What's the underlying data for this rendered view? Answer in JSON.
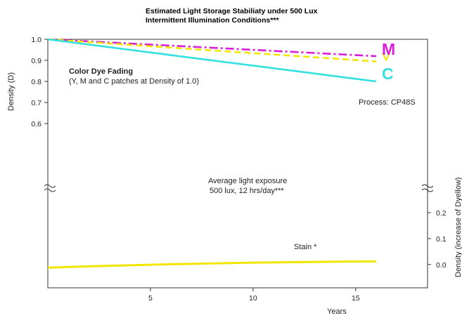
{
  "chart_data": {
    "type": "line",
    "title": [
      "Estimated Light Storage Stabiliaty under 500 Lux",
      "Intermittent Illumination Conditions***"
    ],
    "xlabel": "Years",
    "ylabel_left": "Density (D)",
    "ylabel_right": "Density (increase of Dyellow)",
    "x_ticks": [
      5,
      10,
      15
    ],
    "xlim": [
      0,
      18.5
    ],
    "upper_panel": {
      "ylim": [
        0.5,
        1.0
      ],
      "y_ticks": [
        "1.0",
        "0.9",
        "0.8",
        "0.7",
        "0.6"
      ],
      "series": [
        {
          "name": "M",
          "color": "#d81ed8",
          "dash": "dashdot",
          "x": [
            0,
            16
          ],
          "y": [
            1.0,
            0.92
          ]
        },
        {
          "name": "Y",
          "color": "#f2e600",
          "dash": "dashed",
          "x": [
            0,
            16
          ],
          "y": [
            1.0,
            0.895
          ]
        },
        {
          "name": "C",
          "color": "#33e0e0",
          "dash": "solid",
          "x": [
            0,
            16
          ],
          "y": [
            1.0,
            0.8
          ]
        }
      ],
      "series_labels": {
        "M": "M",
        "C": "C"
      }
    },
    "lower_panel": {
      "ylim": [
        -0.09,
        0.3
      ],
      "y_ticks": [
        "0.2",
        "0.1",
        "0.0"
      ],
      "series": [
        {
          "name": "Stain *",
          "color": "#f2e600",
          "x": [
            0,
            2,
            4,
            6,
            8,
            10,
            12,
            14,
            16
          ],
          "y": [
            -0.012,
            -0.007,
            -0.003,
            0.001,
            0.004,
            0.007,
            0.009,
            0.011,
            0.012
          ]
        }
      ]
    },
    "annotations": {
      "dye_title": "Color Dye Fading",
      "dye_sub": "(Y, M and C patches at Density of 1.0)",
      "process": "Process: CP48S",
      "exposure_1": "Average light exposure",
      "exposure_2": "500 lux, 12 hrs/day***",
      "stain": "Stain *"
    },
    "grid": false
  }
}
